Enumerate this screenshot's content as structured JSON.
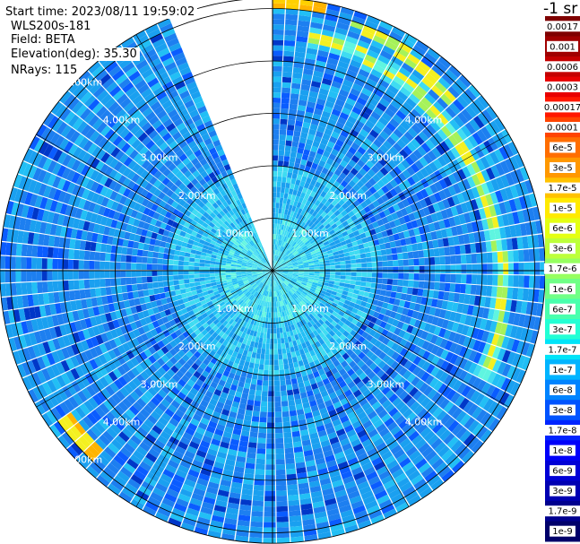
{
  "header": {
    "start_time": "Start time: 2023/08/11 19:59:02",
    "instrument": "WLS200s-181",
    "field": "Field: BETA",
    "elevation": "Elevation(deg): 35.30",
    "nrays": "NRays: 115"
  },
  "colorbar": {
    "unit": "-1 sr",
    "labels": [
      "0.0017",
      "0.001",
      "0.0006",
      "0.0003",
      "0.00017",
      "0.0001",
      "6e-5",
      "3e-5",
      "1.7e-5",
      "1e-5",
      "6e-6",
      "3e-6",
      "1.7e-6",
      "1e-6",
      "6e-7",
      "3e-7",
      "1.7e-7",
      "1e-7",
      "6e-8",
      "3e-8",
      "1.7e-8",
      "1e-8",
      "6e-9",
      "3e-9",
      "1.7e-9",
      "1e-9"
    ],
    "colors": [
      "#7f0000",
      "#a00000",
      "#c40000",
      "#e80000",
      "#ff1800",
      "#ff4400",
      "#ff6e00",
      "#ff9800",
      "#ffc200",
      "#ffea00",
      "#e4ff12",
      "#bdff3a",
      "#96ff60",
      "#70ff86",
      "#49ffad",
      "#23ffd4",
      "#00e4f8",
      "#00b4ff",
      "#0084ff",
      "#0054ff",
      "#0024ff",
      "#0000fa",
      "#0000d6",
      "#0000b2",
      "#00008e",
      "#00006a"
    ],
    "light_text_indices": [
      0,
      1,
      2,
      3,
      21,
      22,
      23,
      24,
      25
    ]
  },
  "chart_data": {
    "type": "polar-ppi",
    "range_rings_km": [
      1.0,
      2.0,
      3.0,
      4.0,
      5.0
    ],
    "ring_labels": [
      "1.00km",
      "2.00km",
      "3.00km",
      "4.00km",
      "5.00km"
    ],
    "max_range_km": 5.2,
    "n_rays": 115,
    "gap_azimuth_deg": [
      -22,
      0
    ],
    "scan_description": "Backscatter (BETA) PPI; background ~1e-8 to 3e-7; high values 1e-6 to 1e-5 along a band near 4.5 km range on the east side (azimuth approx 10 to 115 deg) and a patch near 5 km range at azimuth approx 225 deg"
  }
}
